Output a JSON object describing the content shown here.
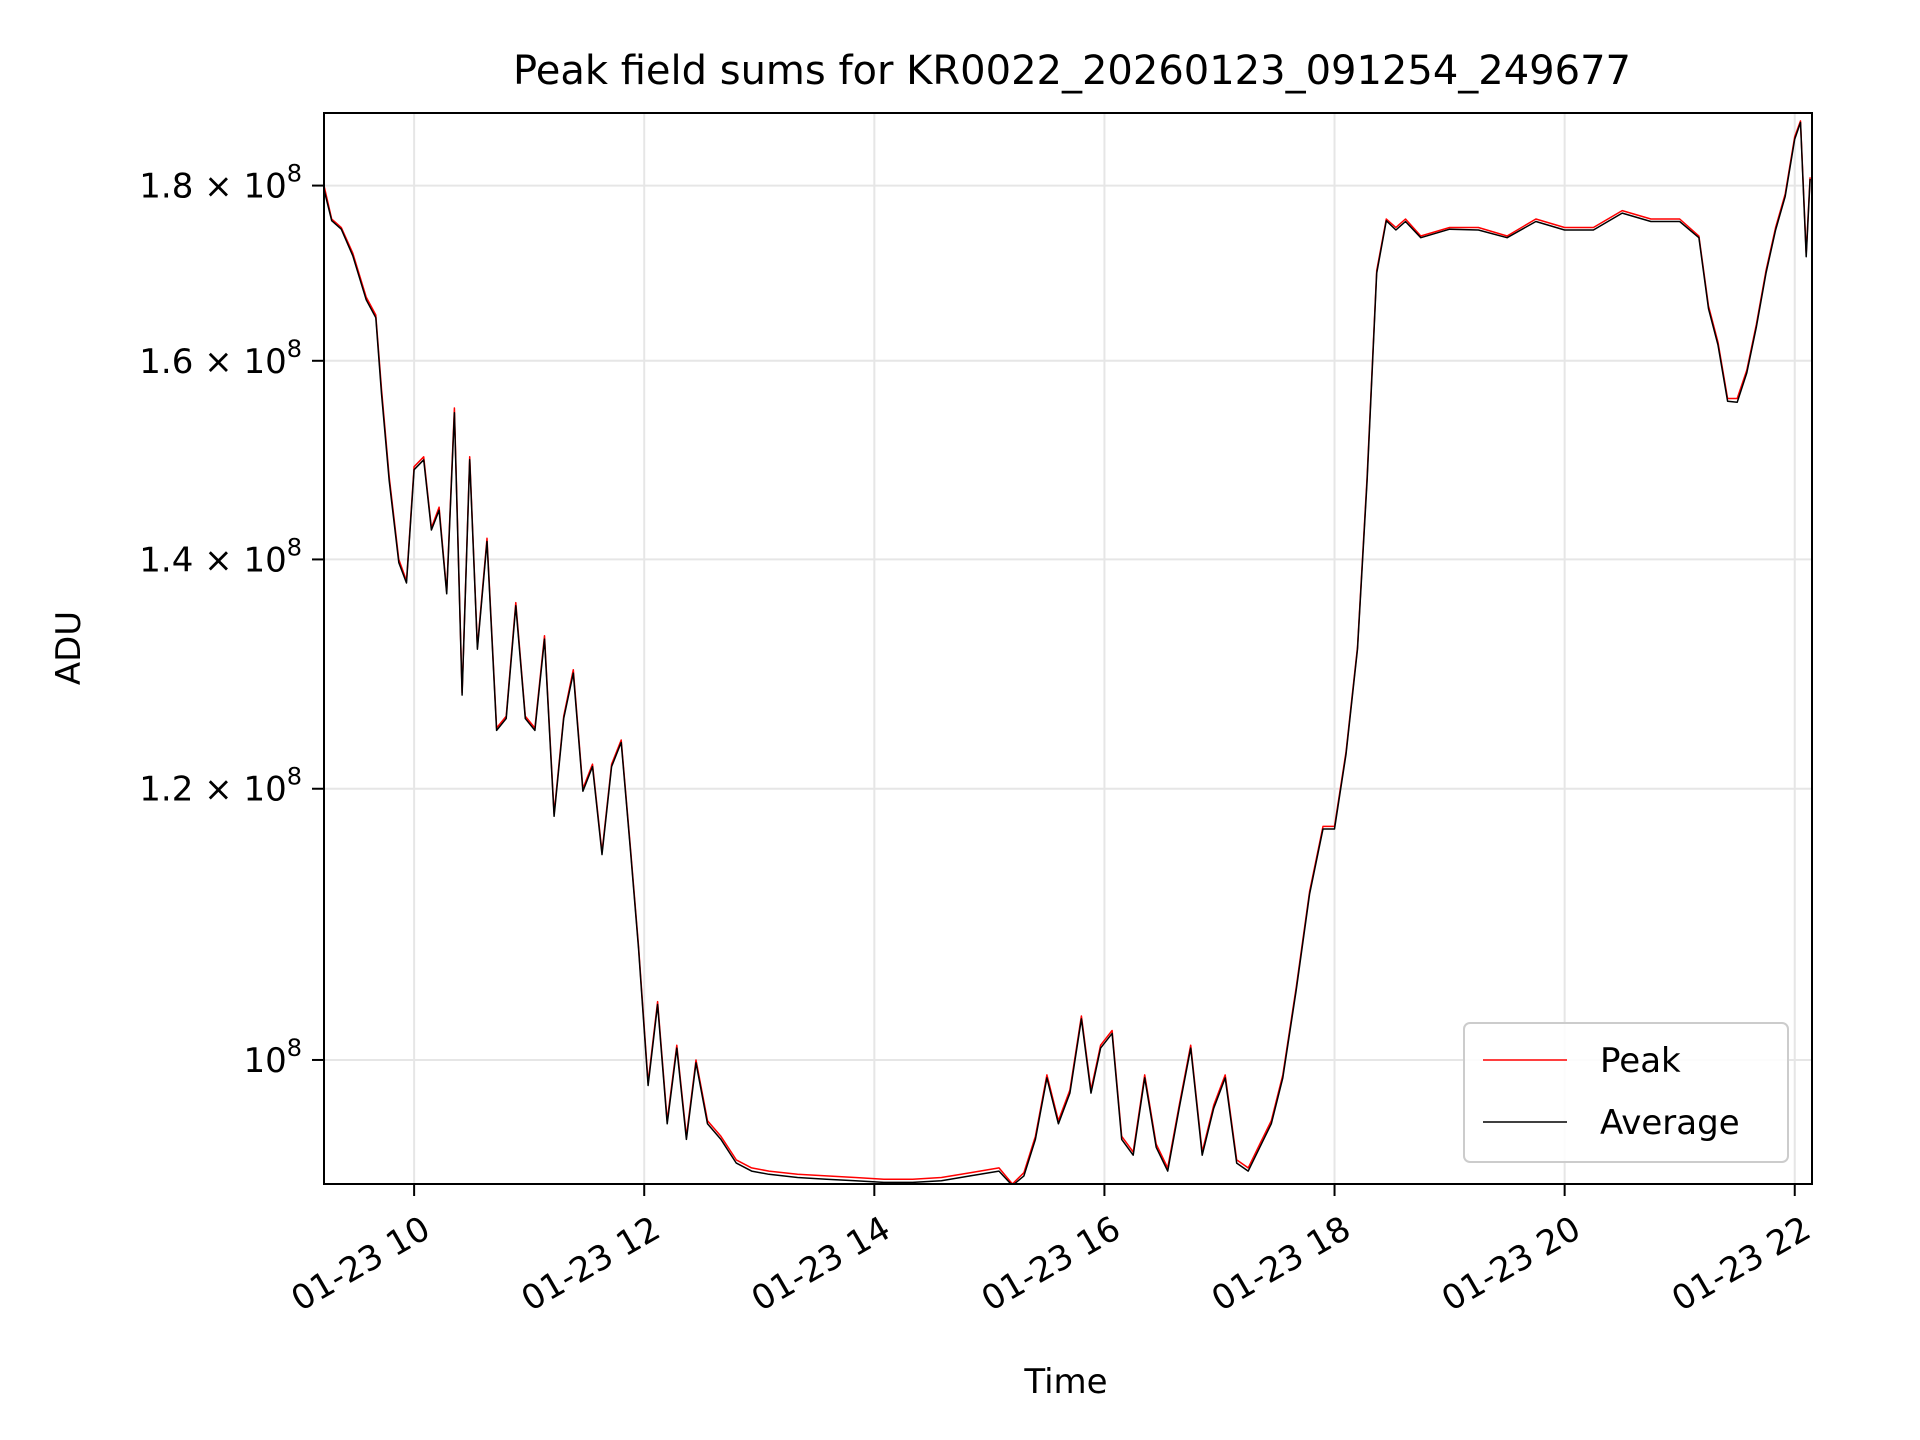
{
  "chart_data": {
    "type": "line",
    "title": "Peak field sums for KR0022_20260123_091254_249677",
    "xlabel": "Time",
    "ylabel": "ADU",
    "x_range": [
      "2026-01-23 09:13",
      "2026-01-23 22:09"
    ],
    "y_range": [
      92000000,
      189000000
    ],
    "y_scale": "log",
    "grid": true,
    "legend_position": "lower right",
    "x_ticks": [
      {
        "label": "01-23 10",
        "value": "2026-01-23 10:00"
      },
      {
        "label": "01-23 12",
        "value": "2026-01-23 12:00"
      },
      {
        "label": "01-23 14",
        "value": "2026-01-23 14:00"
      },
      {
        "label": "01-23 16",
        "value": "2026-01-23 16:00"
      },
      {
        "label": "01-23 18",
        "value": "2026-01-23 18:00"
      },
      {
        "label": "01-23 20",
        "value": "2026-01-23 20:00"
      },
      {
        "label": "01-23 22",
        "value": "2026-01-23 22:00"
      }
    ],
    "y_ticks": [
      {
        "mantissa": "",
        "base": "10",
        "exp": "8",
        "value": 100000000
      },
      {
        "mantissa": "1.2",
        "base": "10",
        "exp": "8",
        "value": 120000000
      },
      {
        "mantissa": "1.4",
        "base": "10",
        "exp": "8",
        "value": 140000000
      },
      {
        "mantissa": "1.6",
        "base": "10",
        "exp": "8",
        "value": 160000000
      },
      {
        "mantissa": "1.8",
        "base": "10",
        "exp": "8",
        "value": 180000000
      }
    ],
    "series": [
      {
        "name": "Peak",
        "color": "#ff0000",
        "x": [
          "2026-01-23 09:13",
          "2026-01-23 09:17",
          "2026-01-23 09:22",
          "2026-01-23 09:28",
          "2026-01-23 09:35",
          "2026-01-23 09:40",
          "2026-01-23 09:43",
          "2026-01-23 09:47",
          "2026-01-23 09:52",
          "2026-01-23 09:56",
          "2026-01-23 10:00",
          "2026-01-23 10:05",
          "2026-01-23 10:09",
          "2026-01-23 10:13",
          "2026-01-23 10:17",
          "2026-01-23 10:21",
          "2026-01-23 10:25",
          "2026-01-23 10:29",
          "2026-01-23 10:33",
          "2026-01-23 10:38",
          "2026-01-23 10:43",
          "2026-01-23 10:48",
          "2026-01-23 10:53",
          "2026-01-23 10:58",
          "2026-01-23 11:03",
          "2026-01-23 11:08",
          "2026-01-23 11:13",
          "2026-01-23 11:18",
          "2026-01-23 11:23",
          "2026-01-23 11:28",
          "2026-01-23 11:33",
          "2026-01-23 11:38",
          "2026-01-23 11:43",
          "2026-01-23 11:48",
          "2026-01-23 11:53",
          "2026-01-23 11:57",
          "2026-01-23 12:02",
          "2026-01-23 12:07",
          "2026-01-23 12:12",
          "2026-01-23 12:17",
          "2026-01-23 12:22",
          "2026-01-23 12:27",
          "2026-01-23 12:33",
          "2026-01-23 12:40",
          "2026-01-23 12:48",
          "2026-01-23 12:56",
          "2026-01-23 13:05",
          "2026-01-23 13:20",
          "2026-01-23 13:35",
          "2026-01-23 13:50",
          "2026-01-23 14:05",
          "2026-01-23 14:20",
          "2026-01-23 14:35",
          "2026-01-23 14:50",
          "2026-01-23 15:05",
          "2026-01-23 15:12",
          "2026-01-23 15:18",
          "2026-01-23 15:24",
          "2026-01-23 15:30",
          "2026-01-23 15:36",
          "2026-01-23 15:42",
          "2026-01-23 15:48",
          "2026-01-23 15:53",
          "2026-01-23 15:58",
          "2026-01-23 16:04",
          "2026-01-23 16:09",
          "2026-01-23 16:15",
          "2026-01-23 16:21",
          "2026-01-23 16:27",
          "2026-01-23 16:33",
          "2026-01-23 16:39",
          "2026-01-23 16:45",
          "2026-01-23 16:51",
          "2026-01-23 16:57",
          "2026-01-23 17:03",
          "2026-01-23 17:09",
          "2026-01-23 17:15",
          "2026-01-23 17:21",
          "2026-01-23 17:27",
          "2026-01-23 17:33",
          "2026-01-23 17:40",
          "2026-01-23 17:47",
          "2026-01-23 17:54",
          "2026-01-23 18:00",
          "2026-01-23 18:06",
          "2026-01-23 18:12",
          "2026-01-23 18:17",
          "2026-01-23 18:22",
          "2026-01-23 18:27",
          "2026-01-23 18:32",
          "2026-01-23 18:37",
          "2026-01-23 18:45",
          "2026-01-23 19:00",
          "2026-01-23 19:15",
          "2026-01-23 19:30",
          "2026-01-23 19:45",
          "2026-01-23 20:00",
          "2026-01-23 20:15",
          "2026-01-23 20:30",
          "2026-01-23 20:45",
          "2026-01-23 21:00",
          "2026-01-23 21:10",
          "2026-01-23 21:15",
          "2026-01-23 21:20",
          "2026-01-23 21:25",
          "2026-01-23 21:30",
          "2026-01-23 21:35",
          "2026-01-23 21:40",
          "2026-01-23 21:45",
          "2026-01-23 21:50",
          "2026-01-23 21:55",
          "2026-01-23 22:00",
          "2026-01-23 22:03",
          "2026-01-23 22:06",
          "2026-01-23 22:08"
        ],
        "y": [
          180000000,
          176000000,
          175000000,
          172000000,
          167000000,
          165000000,
          157000000,
          148000000,
          140000000,
          138000000,
          149000000,
          150000000,
          143000000,
          145000000,
          137000000,
          155000000,
          128000000,
          150000000,
          132000000,
          142000000,
          125000000,
          126000000,
          136000000,
          126000000,
          125000000,
          133000000,
          118000000,
          126000000,
          130000000,
          120000000,
          122000000,
          115000000,
          122000000,
          124000000,
          115000000,
          108000000,
          98500000,
          104000000,
          96000000,
          101000000,
          95000000,
          100000000,
          96000000,
          95000000,
          93500000,
          93000000,
          92800000,
          92600000,
          92500000,
          92400000,
          92300000,
          92300000,
          92400000,
          92700000,
          93000000,
          92000000,
          92700000,
          95000000,
          99000000,
          96000000,
          98000000,
          103000000,
          98000000,
          101000000,
          102000000,
          95000000,
          94000000,
          99000000,
          94500000,
          93000000,
          97000000,
          101000000,
          94000000,
          97000000,
          99000000,
          93500000,
          93000000,
          94500000,
          96000000,
          99000000,
          105000000,
          112000000,
          117000000,
          117000000,
          123000000,
          132000000,
          148000000,
          170000000,
          176000000,
          175000000,
          176000000,
          174000000,
          175000000,
          175000000,
          174000000,
          176000000,
          175000000,
          175000000,
          177000000,
          176000000,
          176000000,
          174000000,
          166000000,
          162000000,
          156000000,
          156000000,
          159000000,
          164000000,
          170000000,
          175000000,
          179000000,
          186000000,
          188000000,
          172000000,
          181000000
        ]
      },
      {
        "name": "Average",
        "color": "#000000",
        "x": [
          "2026-01-23 09:13",
          "2026-01-23 09:17",
          "2026-01-23 09:22",
          "2026-01-23 09:28",
          "2026-01-23 09:35",
          "2026-01-23 09:40",
          "2026-01-23 09:43",
          "2026-01-23 09:47",
          "2026-01-23 09:52",
          "2026-01-23 09:56",
          "2026-01-23 10:00",
          "2026-01-23 10:05",
          "2026-01-23 10:09",
          "2026-01-23 10:13",
          "2026-01-23 10:17",
          "2026-01-23 10:21",
          "2026-01-23 10:25",
          "2026-01-23 10:29",
          "2026-01-23 10:33",
          "2026-01-23 10:38",
          "2026-01-23 10:43",
          "2026-01-23 10:48",
          "2026-01-23 10:53",
          "2026-01-23 10:58",
          "2026-01-23 11:03",
          "2026-01-23 11:08",
          "2026-01-23 11:13",
          "2026-01-23 11:18",
          "2026-01-23 11:23",
          "2026-01-23 11:28",
          "2026-01-23 11:33",
          "2026-01-23 11:38",
          "2026-01-23 11:43",
          "2026-01-23 11:48",
          "2026-01-23 11:53",
          "2026-01-23 11:57",
          "2026-01-23 12:02",
          "2026-01-23 12:07",
          "2026-01-23 12:12",
          "2026-01-23 12:17",
          "2026-01-23 12:22",
          "2026-01-23 12:27",
          "2026-01-23 12:33",
          "2026-01-23 12:40",
          "2026-01-23 12:48",
          "2026-01-23 12:56",
          "2026-01-23 13:05",
          "2026-01-23 13:20",
          "2026-01-23 13:35",
          "2026-01-23 13:50",
          "2026-01-23 14:05",
          "2026-01-23 14:20",
          "2026-01-23 14:35",
          "2026-01-23 14:50",
          "2026-01-23 15:05",
          "2026-01-23 15:12",
          "2026-01-23 15:18",
          "2026-01-23 15:24",
          "2026-01-23 15:30",
          "2026-01-23 15:36",
          "2026-01-23 15:42",
          "2026-01-23 15:48",
          "2026-01-23 15:53",
          "2026-01-23 15:58",
          "2026-01-23 16:04",
          "2026-01-23 16:09",
          "2026-01-23 16:15",
          "2026-01-23 16:21",
          "2026-01-23 16:27",
          "2026-01-23 16:33",
          "2026-01-23 16:39",
          "2026-01-23 16:45",
          "2026-01-23 16:51",
          "2026-01-23 16:57",
          "2026-01-23 17:03",
          "2026-01-23 17:09",
          "2026-01-23 17:15",
          "2026-01-23 17:21",
          "2026-01-23 17:27",
          "2026-01-23 17:33",
          "2026-01-23 17:40",
          "2026-01-23 17:47",
          "2026-01-23 17:54",
          "2026-01-23 18:00",
          "2026-01-23 18:06",
          "2026-01-23 18:12",
          "2026-01-23 18:17",
          "2026-01-23 18:22",
          "2026-01-23 18:27",
          "2026-01-23 18:32",
          "2026-01-23 18:37",
          "2026-01-23 18:45",
          "2026-01-23 19:00",
          "2026-01-23 19:15",
          "2026-01-23 19:30",
          "2026-01-23 19:45",
          "2026-01-23 20:00",
          "2026-01-23 20:15",
          "2026-01-23 20:30",
          "2026-01-23 20:45",
          "2026-01-23 21:00",
          "2026-01-23 21:10",
          "2026-01-23 21:15",
          "2026-01-23 21:20",
          "2026-01-23 21:25",
          "2026-01-23 21:30",
          "2026-01-23 21:35",
          "2026-01-23 21:40",
          "2026-01-23 21:45",
          "2026-01-23 21:50",
          "2026-01-23 21:55",
          "2026-01-23 22:00",
          "2026-01-23 22:03",
          "2026-01-23 22:06",
          "2026-01-23 22:08"
        ],
        "y": [
          179500000,
          175800000,
          174800000,
          171700000,
          166700000,
          164700000,
          156500000,
          147600000,
          139700000,
          137800000,
          148700000,
          149700000,
          142800000,
          144700000,
          136800000,
          154500000,
          127800000,
          149700000,
          131800000,
          141700000,
          124800000,
          125800000,
          135700000,
          125800000,
          124800000,
          132700000,
          117800000,
          125800000,
          129700000,
          119800000,
          121800000,
          114800000,
          121800000,
          123800000,
          114800000,
          107800000,
          98300000,
          103800000,
          95800000,
          100800000,
          94800000,
          99800000,
          95800000,
          94800000,
          93300000,
          92800000,
          92600000,
          92400000,
          92300000,
          92200000,
          92100000,
          92100000,
          92200000,
          92500000,
          92800000,
          91900000,
          92500000,
          94800000,
          98800000,
          95800000,
          97800000,
          102800000,
          97800000,
          100800000,
          101800000,
          94800000,
          93800000,
          98800000,
          94300000,
          92800000,
          96800000,
          100800000,
          93800000,
          96800000,
          98800000,
          93300000,
          92800000,
          94300000,
          95800000,
          98800000,
          104800000,
          111800000,
          116800000,
          116800000,
          122800000,
          131800000,
          147600000,
          169700000,
          175800000,
          174700000,
          175700000,
          173800000,
          174800000,
          174700000,
          173800000,
          175700000,
          174700000,
          174700000,
          176700000,
          175700000,
          175700000,
          173800000,
          165700000,
          161700000,
          155700000,
          155600000,
          158700000,
          163700000,
          169700000,
          174700000,
          178700000,
          185700000,
          187800000,
          171600000,
          180800000
        ]
      }
    ]
  }
}
